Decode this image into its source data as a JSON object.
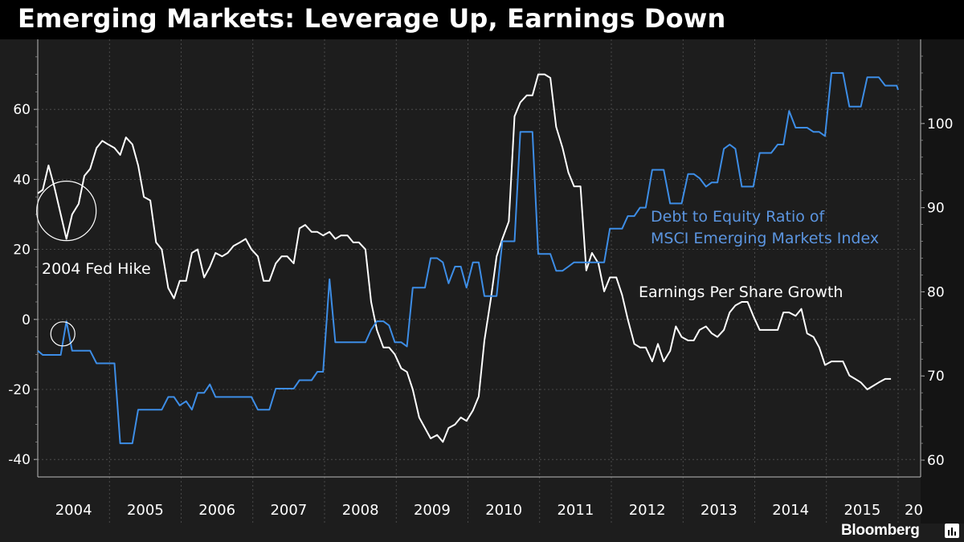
{
  "page": {
    "title": "Emerging Markets: Leverage Up, Earnings Down",
    "brand": "Bloomberg"
  },
  "chart_data": {
    "type": "line",
    "title": "Emerging Markets: Leverage Up, Earnings Down",
    "x_unit": "year",
    "x_range": [
      2004.0,
      2016.0
    ],
    "x_tick_labels": [
      "2004",
      "2005",
      "2006",
      "2007",
      "2008",
      "2009",
      "2010",
      "2011",
      "2012",
      "2013",
      "2014",
      "2015",
      "20"
    ],
    "left_axis": {
      "range": [
        -45,
        80
      ],
      "ticks": [
        -40,
        -20,
        0,
        20,
        40,
        60
      ]
    },
    "right_axis": {
      "range": [
        58,
        110
      ],
      "ticks": [
        60,
        70,
        80,
        90,
        100
      ]
    },
    "grid": true,
    "series": [
      {
        "name": "Earnings Per Share Growth",
        "label": "Earnings Per Share Growth",
        "axis": "left",
        "color": "#ffffff",
        "points": [
          [
            2004.0,
            36
          ],
          [
            2004.07,
            37
          ],
          [
            2004.15,
            44
          ],
          [
            2004.23,
            38
          ],
          [
            2004.32,
            30
          ],
          [
            2004.4,
            23
          ],
          [
            2004.48,
            30
          ],
          [
            2004.57,
            33
          ],
          [
            2004.65,
            41
          ],
          [
            2004.73,
            43
          ],
          [
            2004.82,
            49
          ],
          [
            2004.9,
            51
          ],
          [
            2004.98,
            50
          ],
          [
            2005.07,
            49
          ],
          [
            2005.15,
            47
          ],
          [
            2005.23,
            52
          ],
          [
            2005.32,
            50
          ],
          [
            2005.4,
            44
          ],
          [
            2005.48,
            35
          ],
          [
            2005.57,
            34
          ],
          [
            2005.65,
            22
          ],
          [
            2005.73,
            20
          ],
          [
            2005.82,
            9
          ],
          [
            2005.9,
            6
          ],
          [
            2005.98,
            11
          ],
          [
            2006.07,
            11
          ],
          [
            2006.15,
            19
          ],
          [
            2006.23,
            20
          ],
          [
            2006.32,
            12
          ],
          [
            2006.4,
            15
          ],
          [
            2006.48,
            19
          ],
          [
            2006.57,
            18
          ],
          [
            2006.65,
            19
          ],
          [
            2006.73,
            21
          ],
          [
            2006.82,
            22
          ],
          [
            2006.9,
            23
          ],
          [
            2006.98,
            20
          ],
          [
            2007.07,
            18
          ],
          [
            2007.15,
            11
          ],
          [
            2007.23,
            11
          ],
          [
            2007.32,
            16
          ],
          [
            2007.4,
            18
          ],
          [
            2007.48,
            18
          ],
          [
            2007.57,
            16
          ],
          [
            2007.65,
            26
          ],
          [
            2007.73,
            27
          ],
          [
            2007.82,
            25
          ],
          [
            2007.9,
            25
          ],
          [
            2007.98,
            24
          ],
          [
            2008.07,
            25
          ],
          [
            2008.15,
            23
          ],
          [
            2008.23,
            24
          ],
          [
            2008.32,
            24
          ],
          [
            2008.4,
            22
          ],
          [
            2008.48,
            22
          ],
          [
            2008.57,
            20
          ],
          [
            2008.65,
            5
          ],
          [
            2008.73,
            -3
          ],
          [
            2008.82,
            -8
          ],
          [
            2008.9,
            -8
          ],
          [
            2008.98,
            -10
          ],
          [
            2009.07,
            -14
          ],
          [
            2009.15,
            -15
          ],
          [
            2009.23,
            -20
          ],
          [
            2009.32,
            -28
          ],
          [
            2009.4,
            -31
          ],
          [
            2009.48,
            -34
          ],
          [
            2009.57,
            -33
          ],
          [
            2009.65,
            -35
          ],
          [
            2009.73,
            -31
          ],
          [
            2009.82,
            -30
          ],
          [
            2009.9,
            -28
          ],
          [
            2009.98,
            -29
          ],
          [
            2010.07,
            -26
          ],
          [
            2010.15,
            -22
          ],
          [
            2010.23,
            -6
          ],
          [
            2010.32,
            6
          ],
          [
            2010.4,
            18
          ],
          [
            2010.48,
            23
          ],
          [
            2010.57,
            28
          ],
          [
            2010.65,
            58
          ],
          [
            2010.73,
            62
          ],
          [
            2010.82,
            64
          ],
          [
            2010.9,
            64
          ],
          [
            2010.98,
            70
          ],
          [
            2011.07,
            70
          ],
          [
            2011.15,
            69
          ],
          [
            2011.23,
            55
          ],
          [
            2011.32,
            49
          ],
          [
            2011.4,
            42
          ],
          [
            2011.48,
            38
          ],
          [
            2011.57,
            38
          ],
          [
            2011.65,
            14
          ],
          [
            2011.73,
            19
          ],
          [
            2011.82,
            16
          ],
          [
            2011.9,
            8
          ],
          [
            2011.98,
            12
          ],
          [
            2012.07,
            12
          ],
          [
            2012.15,
            7
          ],
          [
            2012.23,
            0
          ],
          [
            2012.32,
            -7
          ],
          [
            2012.4,
            -8
          ],
          [
            2012.48,
            -8
          ],
          [
            2012.57,
            -12
          ],
          [
            2012.65,
            -7
          ],
          [
            2012.73,
            -12
          ],
          [
            2012.82,
            -9
          ],
          [
            2012.9,
            -2
          ],
          [
            2012.98,
            -5
          ],
          [
            2013.07,
            -6
          ],
          [
            2013.15,
            -6
          ],
          [
            2013.23,
            -3
          ],
          [
            2013.32,
            -2
          ],
          [
            2013.4,
            -4
          ],
          [
            2013.48,
            -5
          ],
          [
            2013.57,
            -3
          ],
          [
            2013.65,
            2
          ],
          [
            2013.73,
            4
          ],
          [
            2013.82,
            5
          ],
          [
            2013.9,
            5
          ],
          [
            2013.98,
            1
          ],
          [
            2014.07,
            -3
          ],
          [
            2014.15,
            -3
          ],
          [
            2014.23,
            -3
          ],
          [
            2014.32,
            -3
          ],
          [
            2014.4,
            2
          ],
          [
            2014.48,
            2
          ],
          [
            2014.57,
            1
          ],
          [
            2014.65,
            3
          ],
          [
            2014.73,
            -4
          ],
          [
            2014.82,
            -5
          ],
          [
            2014.9,
            -8
          ],
          [
            2014.98,
            -13
          ],
          [
            2015.07,
            -12
          ],
          [
            2015.15,
            -12
          ],
          [
            2015.23,
            -12
          ],
          [
            2015.32,
            -16
          ],
          [
            2015.4,
            -17
          ],
          [
            2015.48,
            -18
          ],
          [
            2015.57,
            -20
          ],
          [
            2015.65,
            -19
          ],
          [
            2015.73,
            -18
          ],
          [
            2015.82,
            -17
          ],
          [
            2015.9,
            -17
          ]
        ]
      },
      {
        "name": "Debt to Equity Ratio of MSCI Emerging Markets Index",
        "label": [
          "Debt to Equity Ratio of",
          "MSCI Emerging Markets Index"
        ],
        "axis": "right",
        "color": "#3d8de6",
        "points": [
          [
            2004.0,
            73
          ],
          [
            2004.07,
            72.5
          ],
          [
            2004.15,
            72.5
          ],
          [
            2004.23,
            72.5
          ],
          [
            2004.32,
            72.5
          ],
          [
            2004.4,
            76.5
          ],
          [
            2004.48,
            73
          ],
          [
            2004.57,
            73
          ],
          [
            2004.65,
            73
          ],
          [
            2004.73,
            73
          ],
          [
            2004.82,
            71.5
          ],
          [
            2004.9,
            71.5
          ],
          [
            2004.98,
            71.5
          ],
          [
            2005.07,
            71.5
          ],
          [
            2005.15,
            62
          ],
          [
            2005.23,
            62
          ],
          [
            2005.32,
            62
          ],
          [
            2005.4,
            66
          ],
          [
            2005.48,
            66
          ],
          [
            2005.57,
            66
          ],
          [
            2005.65,
            66
          ],
          [
            2005.73,
            66
          ],
          [
            2005.82,
            67.5
          ],
          [
            2005.9,
            67.5
          ],
          [
            2005.98,
            66.5
          ],
          [
            2006.07,
            67
          ],
          [
            2006.15,
            66
          ],
          [
            2006.23,
            68
          ],
          [
            2006.32,
            68
          ],
          [
            2006.4,
            69
          ],
          [
            2006.48,
            67.5
          ],
          [
            2006.57,
            67.5
          ],
          [
            2006.65,
            67.5
          ],
          [
            2006.73,
            67.5
          ],
          [
            2006.82,
            67.5
          ],
          [
            2006.9,
            67.5
          ],
          [
            2006.98,
            67.5
          ],
          [
            2007.07,
            66
          ],
          [
            2007.15,
            66
          ],
          [
            2007.23,
            66
          ],
          [
            2007.32,
            68.5
          ],
          [
            2007.4,
            68.5
          ],
          [
            2007.48,
            68.5
          ],
          [
            2007.57,
            68.5
          ],
          [
            2007.65,
            69.5
          ],
          [
            2007.73,
            69.5
          ],
          [
            2007.82,
            69.5
          ],
          [
            2007.9,
            70.5
          ],
          [
            2007.98,
            70.5
          ],
          [
            2008.07,
            81.5
          ],
          [
            2008.15,
            74
          ],
          [
            2008.23,
            74
          ],
          [
            2008.32,
            74
          ],
          [
            2008.4,
            74
          ],
          [
            2008.48,
            74
          ],
          [
            2008.57,
            74
          ],
          [
            2008.65,
            75.5
          ],
          [
            2008.73,
            76.5
          ],
          [
            2008.82,
            76.5
          ],
          [
            2008.9,
            76
          ],
          [
            2008.98,
            74
          ],
          [
            2009.07,
            74
          ],
          [
            2009.15,
            73.5
          ],
          [
            2009.23,
            80.5
          ],
          [
            2009.32,
            80.5
          ],
          [
            2009.4,
            80.5
          ],
          [
            2009.48,
            84
          ],
          [
            2009.57,
            84
          ],
          [
            2009.65,
            83.5
          ],
          [
            2009.73,
            81
          ],
          [
            2009.82,
            83
          ],
          [
            2009.9,
            83
          ],
          [
            2009.98,
            80.5
          ],
          [
            2010.07,
            83.5
          ],
          [
            2010.15,
            83.5
          ],
          [
            2010.23,
            79.5
          ],
          [
            2010.32,
            79.5
          ],
          [
            2010.4,
            79.5
          ],
          [
            2010.48,
            86
          ],
          [
            2010.57,
            86
          ],
          [
            2010.65,
            86
          ],
          [
            2010.73,
            99
          ],
          [
            2010.82,
            99
          ],
          [
            2010.9,
            99
          ],
          [
            2010.98,
            84.5
          ],
          [
            2011.07,
            84.5
          ],
          [
            2011.15,
            84.5
          ],
          [
            2011.23,
            82.5
          ],
          [
            2011.32,
            82.5
          ],
          [
            2011.4,
            83
          ],
          [
            2011.48,
            83.5
          ],
          [
            2011.57,
            83.5
          ],
          [
            2011.65,
            83.5
          ],
          [
            2011.73,
            83.5
          ],
          [
            2011.82,
            83.5
          ],
          [
            2011.9,
            83.5
          ],
          [
            2011.98,
            87.5
          ],
          [
            2012.07,
            87.5
          ],
          [
            2012.15,
            87.5
          ],
          [
            2012.23,
            89
          ],
          [
            2012.32,
            89
          ],
          [
            2012.4,
            90
          ],
          [
            2012.48,
            90
          ],
          [
            2012.57,
            94.5
          ],
          [
            2012.65,
            94.5
          ],
          [
            2012.73,
            94.5
          ],
          [
            2012.82,
            90.5
          ],
          [
            2012.9,
            90.5
          ],
          [
            2012.98,
            90.5
          ],
          [
            2013.07,
            94
          ],
          [
            2013.15,
            94
          ],
          [
            2013.23,
            93.5
          ],
          [
            2013.32,
            92.5
          ],
          [
            2013.4,
            93
          ],
          [
            2013.48,
            93
          ],
          [
            2013.57,
            97
          ],
          [
            2013.65,
            97.5
          ],
          [
            2013.73,
            97
          ],
          [
            2013.82,
            92.5
          ],
          [
            2013.9,
            92.5
          ],
          [
            2013.98,
            92.5
          ],
          [
            2014.07,
            96.5
          ],
          [
            2014.15,
            96.5
          ],
          [
            2014.23,
            96.5
          ],
          [
            2014.32,
            97.5
          ],
          [
            2014.4,
            97.5
          ],
          [
            2014.48,
            101.5
          ],
          [
            2014.57,
            99.5
          ],
          [
            2014.65,
            99.5
          ],
          [
            2014.73,
            99.5
          ],
          [
            2014.82,
            99
          ],
          [
            2014.9,
            99
          ],
          [
            2014.98,
            98.5
          ],
          [
            2015.07,
            106
          ],
          [
            2015.15,
            106
          ],
          [
            2015.23,
            106
          ],
          [
            2015.32,
            102
          ],
          [
            2015.4,
            102
          ],
          [
            2015.48,
            102
          ],
          [
            2015.57,
            105.5
          ],
          [
            2015.65,
            105.5
          ],
          [
            2015.73,
            105.5
          ],
          [
            2015.82,
            104.5
          ],
          [
            2015.9,
            104.5
          ],
          [
            2015.98,
            104.5
          ],
          [
            2016.0,
            104
          ]
        ]
      }
    ],
    "annotations": [
      {
        "name": "fed-hike-label",
        "text": "2004 Fed Hike"
      },
      {
        "name": "eps-circle",
        "kind": "circle",
        "series": 0,
        "at": [
          2004.4,
          31
        ]
      },
      {
        "name": "debt-circle",
        "kind": "circle",
        "series": 1,
        "at": [
          2004.35,
          75
        ]
      }
    ]
  }
}
